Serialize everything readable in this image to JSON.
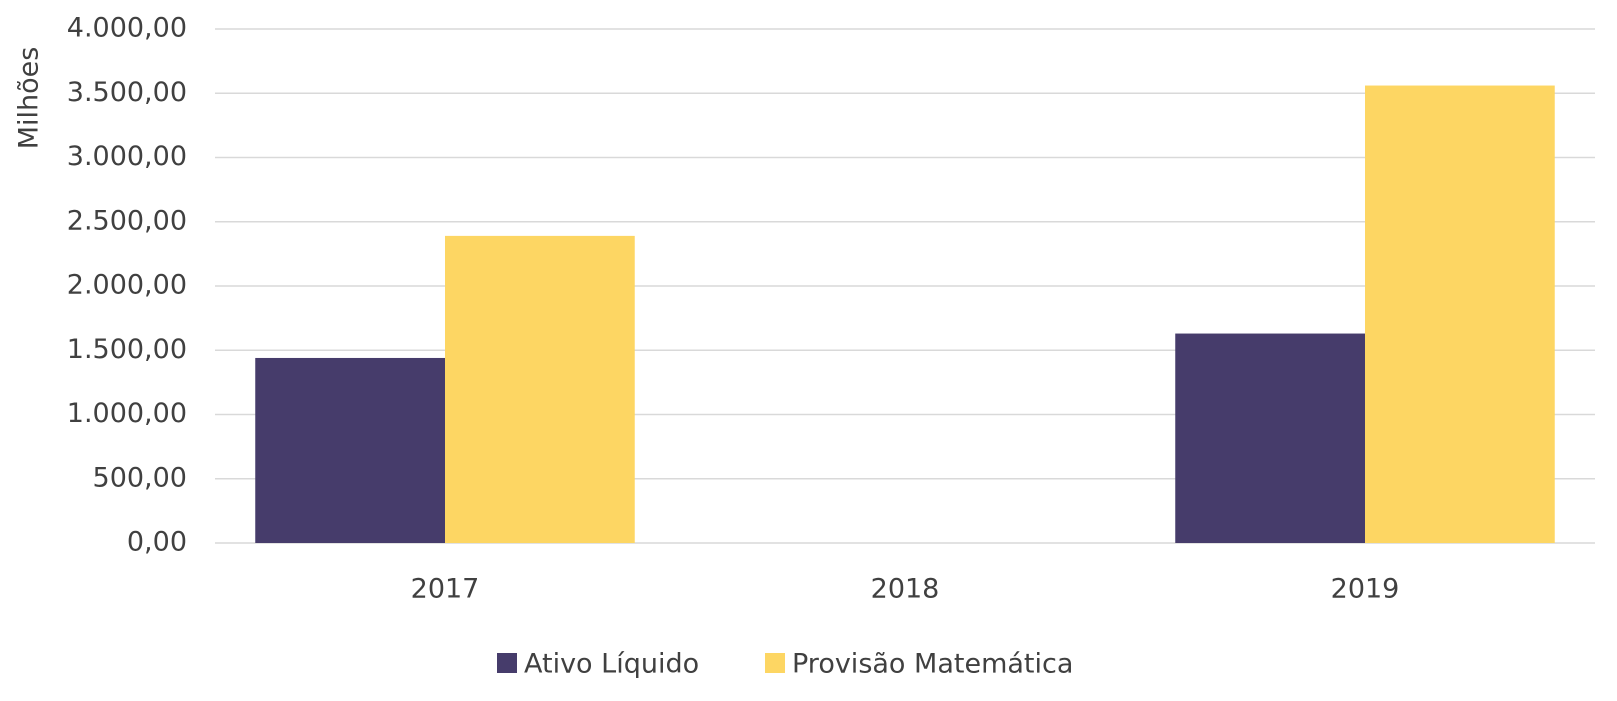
{
  "chart_data": {
    "type": "bar",
    "y_label": "Milhões",
    "categories": [
      "2017",
      "2018",
      "2019"
    ],
    "series": [
      {
        "name": "Ativo Líquido",
        "color": "#463c6b",
        "values": [
          1440,
          null,
          1630
        ]
      },
      {
        "name": "Provisão Matemática",
        "color": "#fdd663",
        "values": [
          2390,
          null,
          3560
        ]
      }
    ],
    "ylim": [
      0,
      4000
    ],
    "yticks": [
      {
        "value": 0,
        "label": "0,00"
      },
      {
        "value": 500,
        "label": "500,00"
      },
      {
        "value": 1000,
        "label": "1.000,00"
      },
      {
        "value": 1500,
        "label": "1.500,00"
      },
      {
        "value": 2000,
        "label": "2.000,00"
      },
      {
        "value": 2500,
        "label": "2.500,00"
      },
      {
        "value": 3000,
        "label": "3.000,00"
      },
      {
        "value": 3500,
        "label": "3.500,00"
      },
      {
        "value": 4000,
        "label": "4.000,00"
      }
    ],
    "grid": true,
    "legend": "bottom"
  }
}
